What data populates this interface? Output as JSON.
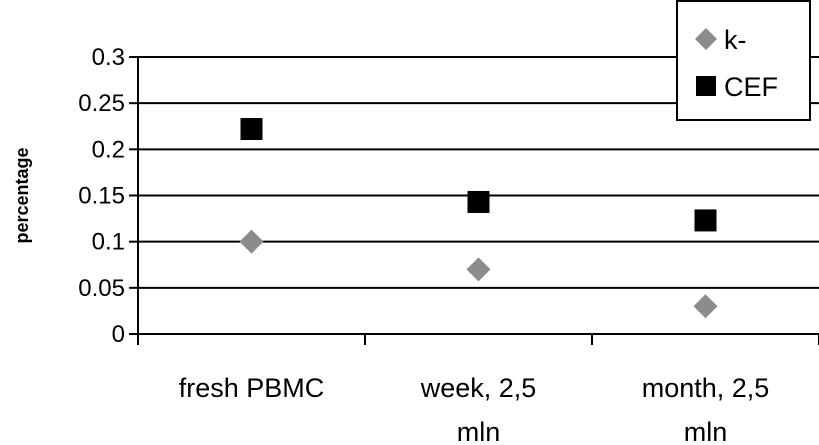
{
  "chart_data": {
    "type": "scatter",
    "categories": [
      "fresh PBMC",
      "week, 2,5 mln",
      "month, 2,5 mln"
    ],
    "category_lines": [
      [
        "fresh PBMC"
      ],
      [
        "week, 2,5",
        "mln"
      ],
      [
        "month, 2,5",
        "mln"
      ]
    ],
    "series": [
      {
        "name": "k-",
        "values": [
          0.1,
          0.07,
          0.03
        ],
        "color": "#8c8c8c",
        "marker": "diamond"
      },
      {
        "name": "CEF",
        "values": [
          0.222,
          0.143,
          0.123
        ],
        "color": "#000000",
        "marker": "square"
      }
    ],
    "ylabel": "percentage",
    "ylim": [
      0,
      0.3
    ],
    "yticks": [
      0,
      0.05,
      0.1,
      0.15,
      0.2,
      0.25,
      0.3
    ],
    "ytick_labels": [
      "0",
      "0.05",
      "0.1",
      "0.15",
      "0.2",
      "0.25",
      "0.3"
    ],
    "grid": true,
    "legend_position": "top-right"
  }
}
